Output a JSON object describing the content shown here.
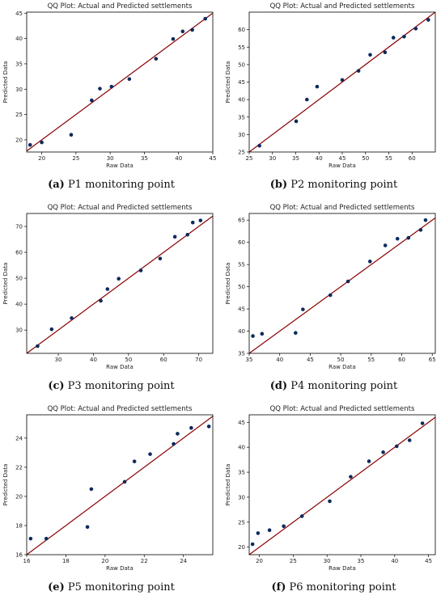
{
  "figure": {
    "colors": {
      "points": "#0d2a5c",
      "line": "#8b0000",
      "frame": "#000000",
      "background": "#ffffff"
    },
    "panels": [
      {
        "caption": {
          "letter": "(a)",
          "text": "P1 monitoring point"
        },
        "chart_data": {
          "type": "scatter",
          "title": "QQ Plot: Actual and Predicted settlements",
          "xlabel": "Raw Data",
          "ylabel": "Predicted Data",
          "xlim": [
            17.8,
            45
          ],
          "ylim": [
            17.6,
            45.2
          ],
          "xticks": [
            20,
            25,
            30,
            35,
            40,
            45
          ],
          "yticks": [
            20,
            25,
            30,
            35,
            40,
            45
          ],
          "reference_line": "y = x",
          "x": [
            18.3,
            20.0,
            24.3,
            27.3,
            28.5,
            30.2,
            32.8,
            36.7,
            39.2,
            40.6,
            42.0,
            43.9
          ],
          "y": [
            19.0,
            19.5,
            21.0,
            27.8,
            30.1,
            30.5,
            32.0,
            36.0,
            39.9,
            41.4,
            41.7,
            43.9
          ]
        }
      },
      {
        "caption": {
          "letter": "(b)",
          "text": "P2 monitoring point"
        },
        "chart_data": {
          "type": "scatter",
          "title": "QQ Plot: Actual and Predicted settlements",
          "xlabel": "Raw Data",
          "ylabel": "Predicted Data",
          "xlim": [
            25,
            65
          ],
          "ylim": [
            25,
            65
          ],
          "xticks": [
            25,
            30,
            35,
            40,
            45,
            50,
            55,
            60
          ],
          "yticks": [
            25,
            30,
            35,
            40,
            45,
            50,
            55,
            60
          ],
          "reference_line": "y = x",
          "x": [
            27.2,
            35.1,
            37.4,
            39.6,
            45.0,
            48.5,
            51.0,
            54.2,
            56.0,
            58.3,
            60.8,
            63.5
          ],
          "y": [
            26.8,
            33.8,
            40.0,
            43.7,
            45.6,
            48.2,
            52.8,
            53.5,
            57.7,
            58.0,
            60.3,
            62.8
          ]
        }
      },
      {
        "caption": {
          "letter": "(c)",
          "text": "P3 monitoring point"
        },
        "chart_data": {
          "type": "scatter",
          "title": "QQ Plot: Actual and Predicted settlements",
          "xlabel": "Raw Data",
          "ylabel": "Predicted Data",
          "xlim": [
            21,
            74
          ],
          "ylim": [
            21,
            75
          ],
          "xticks": [
            30,
            40,
            50,
            60,
            70
          ],
          "yticks": [
            30,
            40,
            50,
            60,
            70
          ],
          "reference_line": "y = x",
          "x": [
            24.1,
            28.1,
            33.8,
            42.1,
            44.0,
            47.2,
            53.5,
            59.0,
            63.2,
            66.8,
            68.3,
            70.5
          ],
          "y": [
            23.8,
            30.3,
            34.6,
            41.3,
            45.8,
            49.8,
            53.0,
            57.6,
            66.0,
            66.8,
            71.5,
            72.3
          ]
        }
      },
      {
        "caption": {
          "letter": "(d)",
          "text": "P4 monitoring point"
        },
        "chart_data": {
          "type": "scatter",
          "title": "QQ Plot: Actual and Predicted settlements",
          "xlabel": "Raw Data",
          "ylabel": "Predicted Data",
          "xlim": [
            35,
            65.5
          ],
          "ylim": [
            35,
            66.5
          ],
          "xticks": [
            35,
            40,
            45,
            50,
            55,
            60,
            65
          ],
          "yticks": [
            35,
            40,
            45,
            50,
            55,
            60,
            65
          ],
          "reference_line": "y = x",
          "x": [
            35.6,
            37.1,
            42.6,
            43.8,
            48.3,
            51.2,
            54.8,
            57.3,
            59.3,
            61.1,
            63.1,
            63.9
          ],
          "y": [
            38.9,
            39.4,
            39.6,
            44.9,
            48.1,
            51.2,
            55.7,
            59.3,
            60.8,
            61.0,
            62.8,
            65.0
          ]
        }
      },
      {
        "caption": {
          "letter": "(e)",
          "text": "P5 monitoring point"
        },
        "chart_data": {
          "type": "scatter",
          "title": "QQ Plot: Actual and Predicted settlements",
          "xlabel": "Raw Data",
          "ylabel": "Predicted Data",
          "xlim": [
            16,
            25.5
          ],
          "ylim": [
            16,
            25.6
          ],
          "xticks": [
            16,
            18,
            20,
            22,
            24
          ],
          "yticks": [
            16,
            18,
            20,
            22,
            24
          ],
          "reference_line": "y = x",
          "x": [
            16.2,
            17.0,
            19.1,
            19.3,
            21.0,
            21.5,
            22.3,
            23.5,
            23.7,
            24.4,
            25.3
          ],
          "y": [
            17.1,
            17.1,
            17.9,
            20.5,
            21.0,
            22.4,
            22.9,
            23.6,
            24.3,
            24.7,
            24.8
          ]
        }
      },
      {
        "caption": {
          "letter": "(f)",
          "text": "P6 monitoring point"
        },
        "chart_data": {
          "type": "scatter",
          "title": "QQ Plot: Actual and Predicted settlements",
          "xlabel": "Raw Data",
          "ylabel": "Predicted Data",
          "xlim": [
            18.5,
            46
          ],
          "ylim": [
            18.5,
            46.5
          ],
          "xticks": [
            20,
            25,
            30,
            35,
            40,
            45
          ],
          "yticks": [
            20,
            25,
            30,
            35,
            40,
            45
          ],
          "reference_line": "y = x",
          "x": [
            19.0,
            19.8,
            21.5,
            23.6,
            26.3,
            30.4,
            33.5,
            36.2,
            38.3,
            40.3,
            42.2,
            44.1
          ],
          "y": [
            20.6,
            22.8,
            23.4,
            24.2,
            26.2,
            29.2,
            34.1,
            37.2,
            39.0,
            40.2,
            41.4,
            44.8
          ]
        }
      }
    ]
  }
}
